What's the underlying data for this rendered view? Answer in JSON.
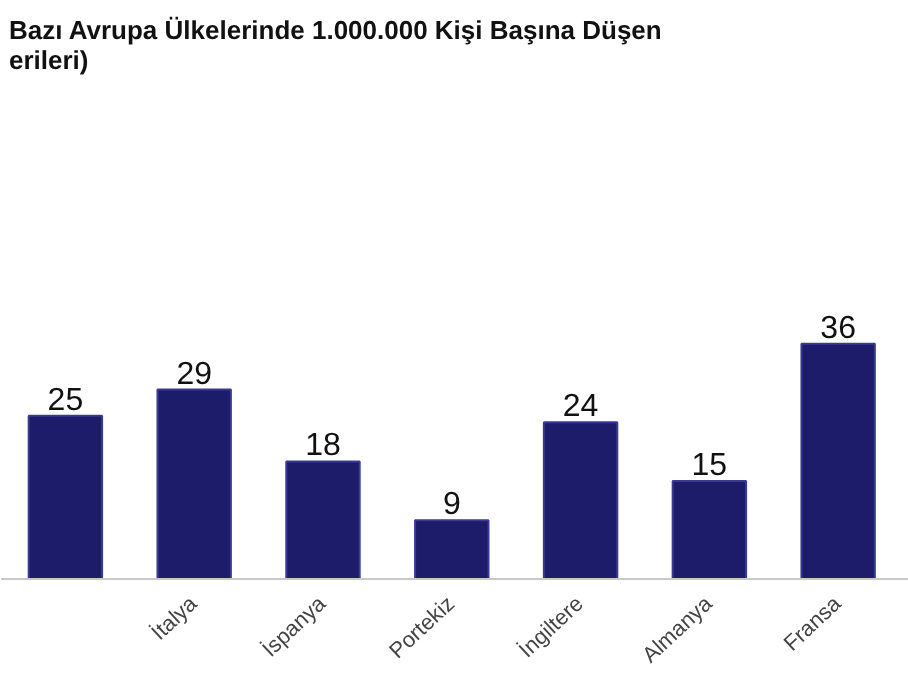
{
  "chart_data": {
    "type": "bar",
    "title": "Bazı Avrupa Ülkelerinde 1.000.000 Kişi Başına Düşen\nerileri)",
    "categories": [
      null,
      "İtalya",
      "İspanya",
      "Portekiz",
      "İngiltere",
      "Almanya",
      "Fransa"
    ],
    "values": [
      25,
      29,
      18,
      9,
      24,
      15,
      36
    ],
    "color": "#1c1c6b",
    "data_labels": true,
    "grid": false
  }
}
